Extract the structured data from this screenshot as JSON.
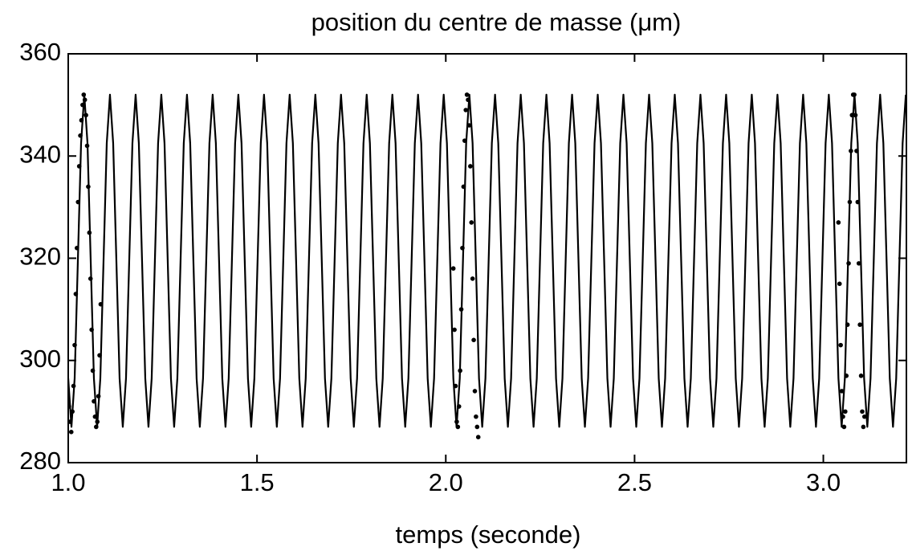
{
  "chart_data": {
    "type": "line",
    "title": "position du centre de masse (μm)",
    "xlabel": "temps (seconde)",
    "xlim": [
      1.0,
      3.22
    ],
    "ylim": [
      280,
      360
    ],
    "xticks": [
      {
        "value": 1.0,
        "label": "1.0"
      },
      1.5,
      {
        "value": 2.0,
        "label": "2.0"
      },
      2.5,
      {
        "value": 3.0,
        "label": "3.0"
      }
    ],
    "yticks": [
      280,
      300,
      320,
      340,
      360
    ],
    "grid": false,
    "series": [
      {
        "color": "#000000",
        "x": [
          1,
          1.0085,
          1.017,
          1.0255,
          1.034,
          1.0425,
          1.051,
          1.0595,
          1.068,
          1.0765,
          1.085,
          1.0935,
          1.102,
          1.1105,
          1.119,
          1.1275,
          1.136,
          1.1445,
          1.153,
          1.1615,
          1.17,
          1.1785,
          1.187,
          1.1955,
          1.204,
          1.2125,
          1.221,
          1.2295,
          1.238,
          1.2465,
          1.255,
          1.2635,
          1.272,
          1.2805,
          1.289,
          1.2975,
          1.306,
          1.3145,
          1.323,
          1.3315,
          1.34,
          1.3485,
          1.357,
          1.3655,
          1.374,
          1.3825,
          1.391,
          1.3995,
          1.408,
          1.4165,
          1.425,
          1.4335,
          1.442,
          1.4505,
          1.459,
          1.4675,
          1.476,
          1.4845,
          1.493,
          1.5015,
          1.51,
          1.5185,
          1.527,
          1.5355,
          1.544,
          1.5525,
          1.561,
          1.5695,
          1.578,
          1.5865,
          1.595,
          1.6035,
          1.612,
          1.6205,
          1.629,
          1.6375,
          1.646,
          1.6545,
          1.663,
          1.6715,
          1.68,
          1.6885,
          1.697,
          1.7055,
          1.714,
          1.7225,
          1.731,
          1.7395,
          1.748,
          1.7565,
          1.765,
          1.7735,
          1.782,
          1.7905,
          1.799,
          1.8075,
          1.816,
          1.8245,
          1.833,
          1.8415,
          1.85,
          1.8585,
          1.867,
          1.8755,
          1.884,
          1.8925,
          1.901,
          1.9095,
          1.918,
          1.9265,
          1.935,
          1.9435,
          1.952,
          1.9605,
          1.969,
          1.9775,
          1.986,
          1.9945,
          2.003,
          2.0115,
          2.02,
          2.0285,
          2.037,
          2.0455,
          2.054,
          2.0625,
          2.071,
          2.0795,
          2.088,
          2.0965,
          2.105,
          2.1135,
          2.122,
          2.1305,
          2.139,
          2.1475,
          2.156,
          2.1645,
          2.173,
          2.1815,
          2.19,
          2.1985,
          2.207,
          2.2155,
          2.224,
          2.2325,
          2.241,
          2.2495,
          2.258,
          2.2665,
          2.275,
          2.2835,
          2.292,
          2.3005,
          2.309,
          2.3175,
          2.326,
          2.3345,
          2.343,
          2.3515,
          2.36,
          2.3685,
          2.377,
          2.3855,
          2.394,
          2.4025,
          2.411,
          2.4195,
          2.428,
          2.4365,
          2.445,
          2.4535,
          2.462,
          2.4705,
          2.479,
          2.4875,
          2.496,
          2.5045,
          2.513,
          2.5215,
          2.53,
          2.5385,
          2.547,
          2.5555,
          2.564,
          2.5725,
          2.581,
          2.5895,
          2.598,
          2.6065,
          2.615,
          2.6235,
          2.632,
          2.6405,
          2.649,
          2.6575,
          2.666,
          2.6745,
          2.683,
          2.6915,
          2.7,
          2.7085,
          2.717,
          2.7255,
          2.734,
          2.7425,
          2.751,
          2.7595,
          2.768,
          2.7765,
          2.785,
          2.7935,
          2.802,
          2.8105,
          2.819,
          2.8275,
          2.836,
          2.8445,
          2.853,
          2.8615,
          2.87,
          2.8785,
          2.887,
          2.8955,
          2.904,
          2.9125,
          2.921,
          2.9295,
          2.938,
          2.9465,
          2.955,
          2.9635,
          2.972,
          2.9805,
          2.989,
          2.9975,
          3.006,
          3.0145,
          3.023,
          3.0315,
          3.04,
          3.0485,
          3.057,
          3.0655,
          3.074,
          3.0825,
          3.091,
          3.0995,
          3.108,
          3.1165,
          3.125,
          3.1335,
          3.142,
          3.1505,
          3.159,
          3.1675,
          3.176,
          3.1845,
          3.193,
          3.2015,
          3.21,
          3.2185
        ],
        "values": [
          296.5,
          287,
          296.5,
          319.5,
          342.5,
          352,
          342.5,
          319.5,
          296.5,
          287,
          296.5,
          319.5,
          342.5,
          352,
          342.5,
          319.5,
          296.5,
          287,
          296.5,
          319.5,
          342.5,
          352,
          342.5,
          319.5,
          296.5,
          287,
          296.5,
          319.5,
          342.5,
          352,
          342.5,
          319.5,
          296.5,
          287,
          296.5,
          319.5,
          342.5,
          352,
          342.5,
          319.5,
          296.5,
          287,
          296.5,
          319.5,
          342.5,
          352,
          342.5,
          319.5,
          296.5,
          287,
          296.5,
          319.5,
          342.5,
          352,
          342.5,
          319.5,
          296.5,
          287,
          296.5,
          319.5,
          342.5,
          352,
          342.5,
          319.5,
          296.5,
          287,
          296.5,
          319.5,
          342.5,
          352,
          342.5,
          319.5,
          296.5,
          287,
          296.5,
          319.5,
          342.5,
          352,
          342.5,
          319.5,
          296.5,
          287,
          296.5,
          319.5,
          342.5,
          352,
          342.5,
          319.5,
          296.5,
          287,
          296.5,
          319.5,
          342.5,
          352,
          342.5,
          319.5,
          296.5,
          287,
          296.5,
          319.5,
          342.5,
          352,
          342.5,
          319.5,
          296.5,
          287,
          296.5,
          319.5,
          342.5,
          352,
          342.5,
          319.5,
          296.5,
          287,
          296.5,
          319.5,
          342.5,
          352,
          342.5,
          319.5,
          296.5,
          287,
          296.5,
          319.5,
          342.5,
          352,
          342.5,
          319.5,
          296.5,
          287,
          296.5,
          319.5,
          342.5,
          352,
          342.5,
          319.5,
          296.5,
          287,
          296.5,
          319.5,
          342.5,
          352,
          342.5,
          319.5,
          296.5,
          287,
          296.5,
          319.5,
          342.5,
          352,
          342.5,
          319.5,
          296.5,
          287,
          296.5,
          319.5,
          342.5,
          352,
          342.5,
          319.5,
          296.5,
          287,
          296.5,
          319.5,
          342.5,
          352,
          342.5,
          319.5,
          296.5,
          287,
          296.5,
          319.5,
          342.5,
          352,
          342.5,
          319.5,
          296.5,
          287,
          296.5,
          319.5,
          342.5,
          352,
          342.5,
          319.5,
          296.5,
          287,
          296.5,
          319.5,
          342.5,
          352,
          342.5,
          319.5,
          296.5,
          287,
          296.5,
          319.5,
          342.5,
          352,
          342.5,
          319.5,
          296.5,
          287,
          296.5,
          319.5,
          342.5,
          352,
          342.5,
          319.5,
          296.5,
          287,
          296.5,
          319.5,
          342.5,
          352,
          342.5,
          319.5,
          296.5,
          287,
          296.5,
          319.5,
          342.5,
          352,
          342.5,
          319.5,
          296.5,
          287,
          296.5,
          319.5,
          342.5,
          352,
          342.5,
          319.5,
          296.5,
          287,
          296.5,
          319.5,
          342.5,
          352,
          342.5,
          319.5,
          296.5,
          287,
          296.5,
          319.5,
          342.5,
          352,
          342.5,
          319.5,
          296.5,
          287,
          296.5,
          319.5,
          342.5,
          352,
          342.5,
          319.5,
          296.5,
          287,
          296.5,
          319.5,
          342.5,
          352
        ]
      },
      {
        "type": "scatter",
        "color": "#000000",
        "x": [
          1.002,
          1.005,
          1.008,
          1.011,
          1.014,
          1.017,
          1.02,
          1.023,
          1.026,
          1.029,
          1.032,
          1.035,
          1.038,
          1.041,
          1.044,
          1.047,
          1.05,
          1.053,
          1.056,
          1.059,
          1.062,
          1.065,
          1.068,
          1.071,
          1.074,
          1.077,
          1.08,
          1.083,
          1.086,
          2.02,
          2.023,
          2.026,
          2.029,
          2.032,
          2.035,
          2.038,
          2.041,
          2.044,
          2.047,
          2.05,
          2.053,
          2.056,
          2.059,
          2.062,
          2.065,
          2.068,
          2.071,
          2.074,
          2.077,
          2.08,
          2.083,
          2.086,
          3.04,
          3.043,
          3.046,
          3.049,
          3.052,
          3.055,
          3.058,
          3.061,
          3.064,
          3.067,
          3.07,
          3.073,
          3.076,
          3.079,
          3.082,
          3.085,
          3.088,
          3.091,
          3.094,
          3.097,
          3.1,
          3.103,
          3.106,
          3.109
        ],
        "values": [
          291,
          288,
          286,
          290,
          295,
          303,
          313,
          322,
          331,
          338,
          344,
          347,
          350,
          352,
          351,
          348,
          342,
          334,
          325,
          316,
          306,
          298,
          292,
          289,
          287,
          288,
          293,
          301,
          311,
          318,
          306,
          295,
          288,
          287,
          291,
          298,
          310,
          322,
          334,
          343,
          349,
          352,
          351,
          346,
          338,
          327,
          316,
          304,
          294,
          289,
          287,
          285,
          327,
          315,
          303,
          294,
          289,
          287,
          290,
          297,
          307,
          319,
          331,
          341,
          348,
          352,
          352,
          348,
          341,
          331,
          319,
          307,
          297,
          290,
          287,
          289
        ]
      }
    ]
  }
}
